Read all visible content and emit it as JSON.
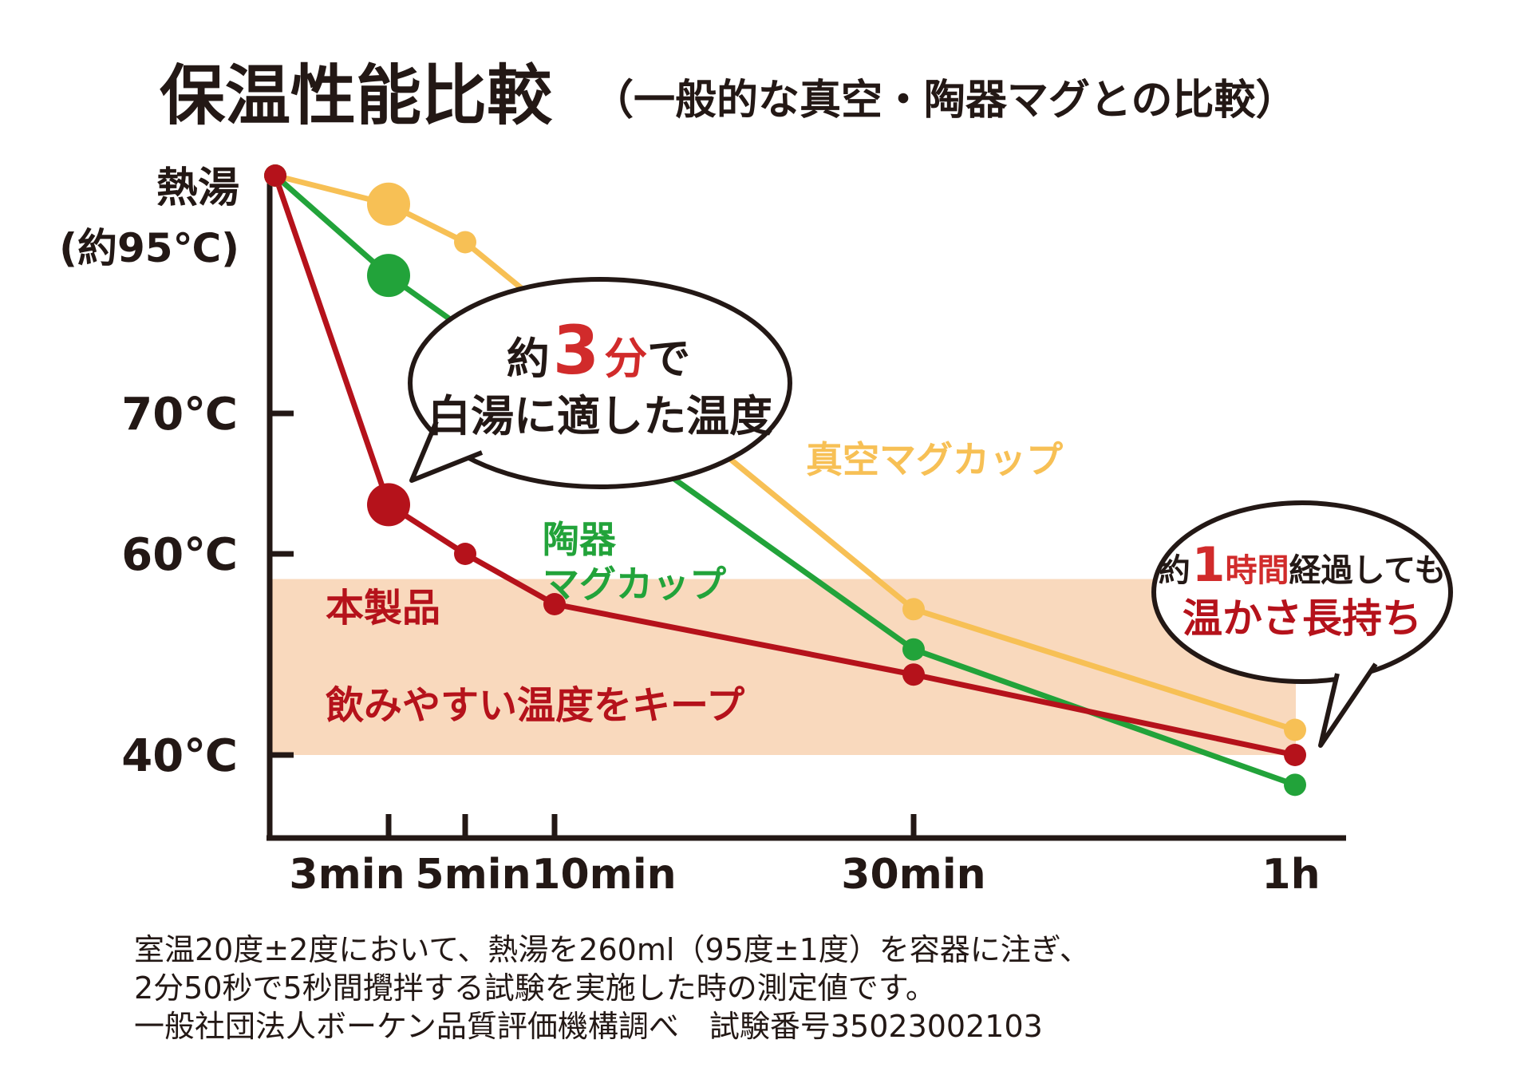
{
  "title": "保温性能比較",
  "subtitle": "（一般的な真空・陶器マグとの比較）",
  "colors": {
    "product": "#B5121B",
    "ceramic": "#22A33A",
    "vacuum": "#F7C055",
    "band": "#F9D9BD",
    "axis": "#231815",
    "text": "#231815",
    "bubble_fill": "#ffffff",
    "bubble_stroke": "#231815"
  },
  "chart_data": {
    "type": "line",
    "title": "保温性能比較",
    "subtitle": "（一般的な真空・陶器マグとの比較）",
    "xlabel": "",
    "ylabel": "",
    "x_unit": "min",
    "x": [
      0,
      3,
      5,
      10,
      30,
      60
    ],
    "x_ticks": [
      {
        "value": 3,
        "label": "3min"
      },
      {
        "value": 5,
        "label": "5min"
      },
      {
        "value": 10,
        "label": "10min"
      },
      {
        "value": 30,
        "label": "30min"
      },
      {
        "value": 60,
        "label": "1h"
      }
    ],
    "y_unit": "℃",
    "y_ticks": [
      {
        "value": 40,
        "label": "40℃"
      },
      {
        "value": 60,
        "label": "60℃"
      },
      {
        "value": 70,
        "label": "70℃"
      }
    ],
    "y_top_label": [
      "熱湯",
      "(約95℃)"
    ],
    "y_top_value": 95,
    "ylim": [
      34,
      95
    ],
    "band": {
      "y_from": 40,
      "y_to": 57.5,
      "label": "飲みやすい温度をキープ"
    },
    "series": [
      {
        "name": "真空マグカップ",
        "color_key": "vacuum",
        "x": [
          0,
          3,
          5,
          30,
          60
        ],
        "values": [
          95,
          92,
          88,
          54.5,
          42.5
        ],
        "big_marker_x": 3
      },
      {
        "name": "陶器マグカップ",
        "name_lines": [
          "陶器",
          "マグカップ"
        ],
        "color_key": "ceramic",
        "x": [
          0,
          3,
          30,
          60
        ],
        "values": [
          95,
          84.5,
          50.5,
          36.5
        ],
        "big_marker_x": 3
      },
      {
        "name": "本製品",
        "color_key": "product",
        "x": [
          0,
          3,
          5,
          10,
          30,
          60
        ],
        "values": [
          95,
          63.5,
          60,
          55,
          48,
          40
        ],
        "big_marker_x": 3
      }
    ],
    "annotations": {
      "bubble1": {
        "pre": "約",
        "num": "3",
        "unit": "分",
        "post": "で",
        "line2": "白湯に適した温度"
      },
      "bubble2": {
        "pre": "約",
        "num": "1",
        "unit": "時間",
        "post": "経過しても",
        "line2": "温かさ長持ち"
      }
    }
  },
  "footnote": [
    "室温20度±2度において、熱湯を260ml（95度±1度）を容器に注ぎ、",
    "2分50秒で5秒間攪拌する試験を実施した時の測定値です。",
    "一般社団法人ボーケン品質評価機構調べ　試験番号35023002103"
  ]
}
